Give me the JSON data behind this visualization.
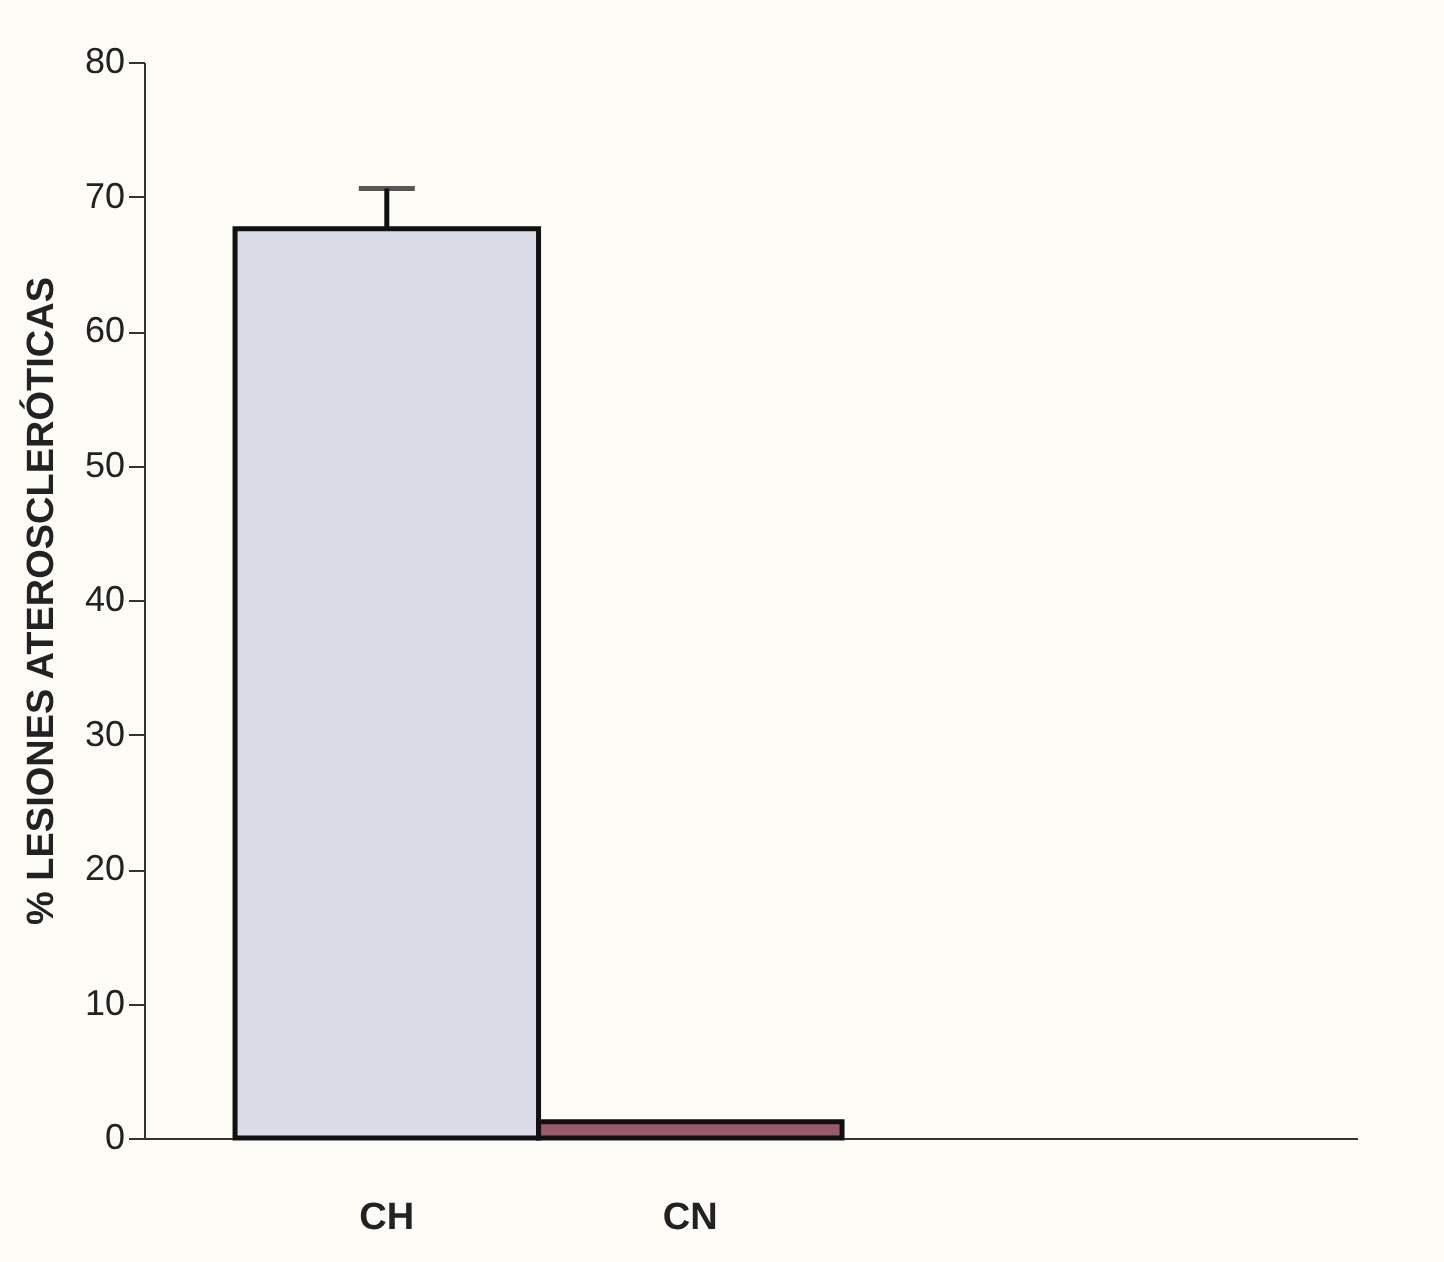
{
  "chart_data": {
    "type": "bar",
    "ylabel": "% LESIONES ATEROSCLERÓTICAS",
    "categories": [
      "CH",
      "CN"
    ],
    "values": [
      67.6,
      1.2
    ],
    "errors": [
      3,
      null
    ],
    "colors": [
      "#d9dbe6",
      "#9c5a6a"
    ],
    "ylim": [
      0,
      80
    ],
    "yticks": [
      0,
      10,
      20,
      30,
      40,
      50,
      60,
      70,
      80
    ],
    "grid": false
  }
}
